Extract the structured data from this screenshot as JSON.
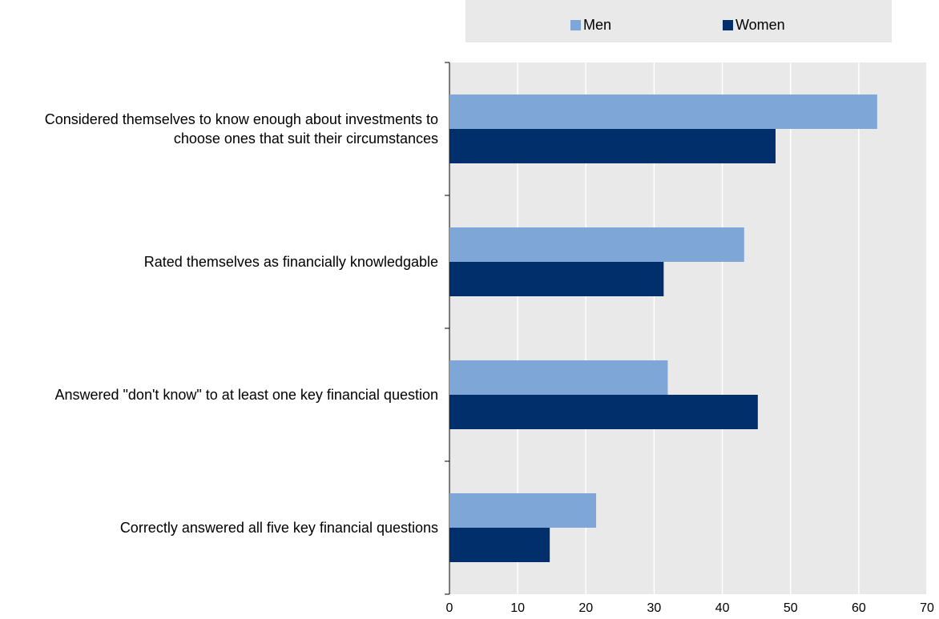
{
  "chart_data": {
    "type": "bar",
    "orientation": "horizontal",
    "categories": [
      "Considered themselves to know enough about investments to choose ones that suit their circumstances",
      "Rated themselves as financially knowledgable",
      "Answered \"don't know\" to at least one key financial question",
      "Correctly answered all five key financial questions"
    ],
    "series": [
      {
        "name": "Men",
        "color": "#7ea7d8",
        "values": [
          62.7,
          43.2,
          32.0,
          21.5
        ]
      },
      {
        "name": "Women",
        "color": "#002f6c",
        "values": [
          47.8,
          31.4,
          45.2,
          14.7
        ]
      }
    ],
    "xlim": [
      0,
      70
    ],
    "xticks": [
      0,
      10,
      20,
      30,
      40,
      50,
      60,
      70
    ],
    "grid": true,
    "legend": "top"
  }
}
